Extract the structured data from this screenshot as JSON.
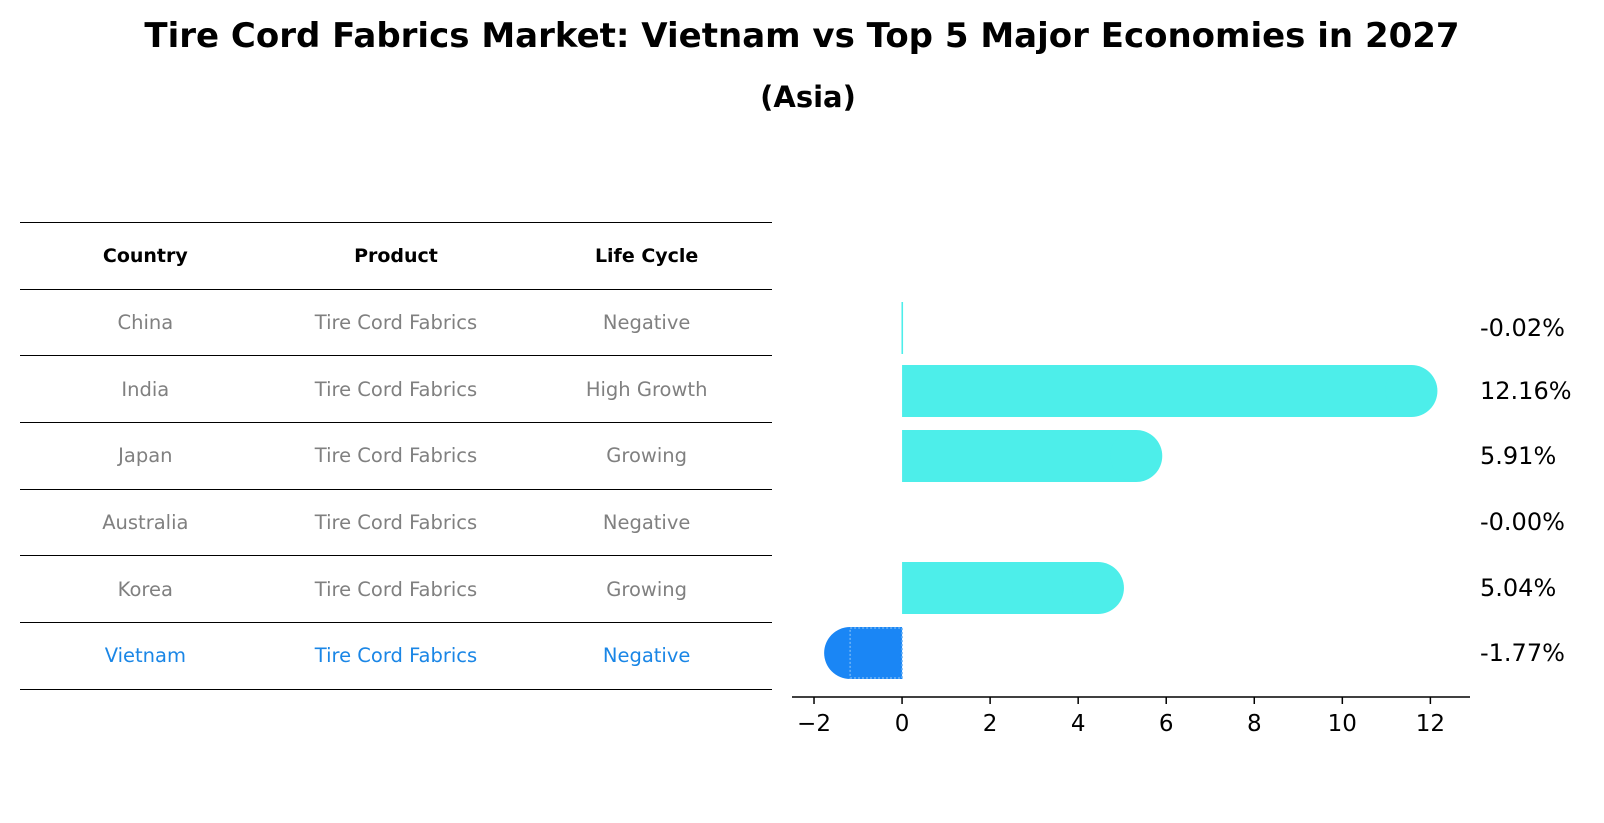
{
  "title": "Tire Cord Fabrics Market: Vietnam vs Top 5 Major Economies in 2027",
  "subtitle": "(Asia)",
  "table": {
    "headers": [
      "Country",
      "Product",
      "Life Cycle"
    ],
    "rows": [
      {
        "country": "China",
        "product": "Tire Cord Fabrics",
        "life_cycle": "Negative"
      },
      {
        "country": "India",
        "product": "Tire Cord Fabrics",
        "life_cycle": "High Growth"
      },
      {
        "country": "Japan",
        "product": "Tire Cord Fabrics",
        "life_cycle": "Growing"
      },
      {
        "country": "Australia",
        "product": "Tire Cord Fabrics",
        "life_cycle": "Negative"
      },
      {
        "country": "Korea",
        "product": "Tire Cord Fabrics",
        "life_cycle": "Growing"
      },
      {
        "country": "Vietnam",
        "product": "Tire Cord Fabrics",
        "life_cycle": "Negative"
      }
    ],
    "highlight_color": "#1a86e6",
    "text_color": "#808080"
  },
  "chart_data": {
    "type": "bar",
    "orientation": "horizontal",
    "categories": [
      "China",
      "India",
      "Japan",
      "Australia",
      "Korea",
      "Vietnam"
    ],
    "values": [
      -0.02,
      12.16,
      5.91,
      -0.0,
      5.04,
      -1.77
    ],
    "value_labels": [
      "-0.02%",
      "12.16%",
      "5.91%",
      "-0.00%",
      "5.04%",
      "-1.77%"
    ],
    "xlim": [
      -2.5,
      12.9
    ],
    "xticks": [
      -2,
      0,
      2,
      4,
      6,
      8,
      10,
      12
    ],
    "xtick_labels": [
      "−2",
      "0",
      "2",
      "4",
      "6",
      "8",
      "10",
      "12"
    ],
    "bar_color": "#4deeea",
    "highlight_color": "#1a86f5",
    "highlight_index": 5
  }
}
